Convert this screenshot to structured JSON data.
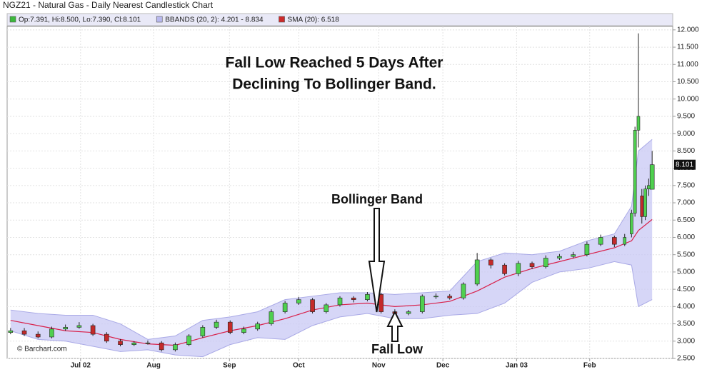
{
  "chart_data": {
    "type": "candlestick",
    "title": "NGZ21 - Natural Gas - Daily Nearest Candlestick Chart",
    "legend": [
      {
        "label": "Op:7.391, Hi:8.500, Lo:7.390, Cl:8.101",
        "color": "#3cb83c"
      },
      {
        "label": "BBANDS (20, 2): 4.201 - 8.834",
        "color": "#b9b9ee"
      },
      {
        "label": "SMA (20): 6.518",
        "color": "#cc2a2a"
      }
    ],
    "annotations": [
      "Fall Low Reached 5 Days After",
      "Declining To Bollinger Band.",
      "Bollinger Band",
      "Fall Low"
    ],
    "credit": "© Barchart.com",
    "last_label": "8.101",
    "up_color": "#4fd04f",
    "down_color": "#c42a2a",
    "band_color": "#c8c8f4",
    "band_line_color": "#a9a9e6",
    "sma_color": "#d8204a",
    "grid": true,
    "xlim": [
      -1,
      193
    ],
    "ylim": [
      2.5,
      12.1
    ],
    "xticks": [
      {
        "value": 20.4,
        "label": "Jul 02"
      },
      {
        "value": 41.7,
        "label": "Aug"
      },
      {
        "value": 63.8,
        "label": "Sep"
      },
      {
        "value": 84,
        "label": "Oct"
      },
      {
        "value": 107.3,
        "label": "Nov"
      },
      {
        "value": 126,
        "label": "Dec"
      },
      {
        "value": 147.5,
        "label": "Jan 03"
      },
      {
        "value": 168.8,
        "label": "Feb"
      }
    ],
    "yticks": [
      {
        "value": 2.5,
        "label": "2.500"
      },
      {
        "value": 3,
        "label": "3.000"
      },
      {
        "value": 3.5,
        "label": "3.500"
      },
      {
        "value": 4,
        "label": "4.000"
      },
      {
        "value": 4.5,
        "label": "4.500"
      },
      {
        "value": 5,
        "label": "5.000"
      },
      {
        "value": 5.5,
        "label": "5.500"
      },
      {
        "value": 6,
        "label": "6.000"
      },
      {
        "value": 6.5,
        "label": "6.500"
      },
      {
        "value": 7,
        "label": "7.000"
      },
      {
        "value": 7.5,
        "label": "7.500"
      },
      {
        "value": 8,
        "label": "8.000"
      },
      {
        "value": 8.5,
        "label": "8.500"
      },
      {
        "value": 9,
        "label": "9.000"
      },
      {
        "value": 9.5,
        "label": "9.500"
      },
      {
        "value": 10,
        "label": "10.000"
      },
      {
        "value": 10.5,
        "label": "10.500"
      },
      {
        "value": 11,
        "label": "11.000"
      },
      {
        "value": 11.5,
        "label": "11.500"
      },
      {
        "value": 12,
        "label": "12.000"
      }
    ],
    "candles": {
      "x": [
        0,
        4,
        8,
        12,
        16,
        20,
        24,
        28,
        32,
        36,
        40,
        44,
        48,
        52,
        56,
        60,
        64,
        68,
        72,
        76,
        80,
        84,
        88,
        92,
        96,
        100,
        104,
        108,
        112,
        116,
        120,
        124,
        128,
        132,
        136,
        140,
        144,
        148,
        152,
        156,
        160,
        164,
        168,
        172,
        176,
        179,
        181,
        182,
        183,
        184,
        185,
        186,
        187
      ],
      "open": [
        3.25,
        3.3,
        3.2,
        3.12,
        3.35,
        3.4,
        3.45,
        3.2,
        3.0,
        2.9,
        2.95,
        2.95,
        2.75,
        2.9,
        3.15,
        3.4,
        3.55,
        3.25,
        3.35,
        3.5,
        3.85,
        4.1,
        4.2,
        3.85,
        4.05,
        4.25,
        4.2,
        4.35,
        3.85,
        3.8,
        3.85,
        4.3,
        4.3,
        4.25,
        4.65,
        5.35,
        5.2,
        4.95,
        5.25,
        5.15,
        5.4,
        5.45,
        5.5,
        5.8,
        6.0,
        5.8,
        6.1,
        6.7,
        9.1,
        7.2,
        6.6,
        7.4,
        7.391
      ],
      "high": [
        3.38,
        3.38,
        3.28,
        3.42,
        3.48,
        3.55,
        3.5,
        3.26,
        3.06,
        3.0,
        3.02,
        3.0,
        2.96,
        3.2,
        3.46,
        3.62,
        3.6,
        3.42,
        3.56,
        3.92,
        4.16,
        4.28,
        4.25,
        4.1,
        4.3,
        4.3,
        4.42,
        4.4,
        3.92,
        3.9,
        4.35,
        4.38,
        4.36,
        4.7,
        5.55,
        5.4,
        5.25,
        5.32,
        5.3,
        5.48,
        5.52,
        5.58,
        5.88,
        6.08,
        6.05,
        6.1,
        6.8,
        9.2,
        11.9,
        7.4,
        7.5,
        7.7,
        8.5
      ],
      "low": [
        3.2,
        3.15,
        3.08,
        3.08,
        3.3,
        3.36,
        3.15,
        2.95,
        2.85,
        2.86,
        2.9,
        2.7,
        2.7,
        2.86,
        3.1,
        3.35,
        3.2,
        3.2,
        3.3,
        3.45,
        3.8,
        4.05,
        3.8,
        3.8,
        4.0,
        4.12,
        4.15,
        3.8,
        3.75,
        3.75,
        3.8,
        4.22,
        4.2,
        4.2,
        4.6,
        5.1,
        4.9,
        4.88,
        5.08,
        5.1,
        5.35,
        5.4,
        5.45,
        5.75,
        5.72,
        5.75,
        6.0,
        6.6,
        8.6,
        6.4,
        6.5,
        7.2,
        7.39
      ],
      "close": [
        3.3,
        3.2,
        3.12,
        3.35,
        3.4,
        3.45,
        3.2,
        3.0,
        2.9,
        2.95,
        2.95,
        2.75,
        2.9,
        3.15,
        3.4,
        3.55,
        3.25,
        3.35,
        3.5,
        3.85,
        4.1,
        4.2,
        3.85,
        4.05,
        4.25,
        4.2,
        4.35,
        3.85,
        3.8,
        3.85,
        4.3,
        4.3,
        4.25,
        4.65,
        5.35,
        5.2,
        4.95,
        5.25,
        5.15,
        5.4,
        5.45,
        5.5,
        5.8,
        6.0,
        5.8,
        6.0,
        6.7,
        9.1,
        9.5,
        6.6,
        7.4,
        7.5,
        8.101
      ]
    },
    "bands": {
      "x": [
        0,
        8,
        16,
        24,
        32,
        40,
        48,
        56,
        64,
        72,
        80,
        88,
        96,
        104,
        112,
        120,
        128,
        136,
        144,
        152,
        160,
        168,
        176,
        181,
        183,
        187
      ],
      "upper": [
        3.9,
        3.8,
        3.75,
        3.75,
        3.5,
        3.05,
        3.15,
        3.6,
        3.7,
        3.85,
        4.2,
        4.3,
        4.4,
        4.4,
        4.35,
        4.4,
        4.45,
        5.3,
        5.55,
        5.5,
        5.6,
        5.9,
        6.1,
        6.9,
        8.5,
        8.834
      ],
      "lower": [
        3.3,
        3.05,
        3.0,
        2.85,
        2.7,
        2.75,
        2.6,
        2.55,
        2.9,
        3.1,
        3.05,
        3.45,
        3.7,
        3.8,
        3.65,
        3.65,
        3.75,
        3.8,
        4.1,
        4.7,
        5.0,
        5.1,
        5.3,
        5.2,
        4.0,
        4.201
      ],
      "sma": [
        3.6,
        3.45,
        3.3,
        3.25,
        3.05,
        2.92,
        2.88,
        3.1,
        3.3,
        3.45,
        3.65,
        3.9,
        4.05,
        4.1,
        4.0,
        4.05,
        4.15,
        4.45,
        4.85,
        5.1,
        5.3,
        5.5,
        5.7,
        5.9,
        6.2,
        6.518
      ]
    }
  }
}
